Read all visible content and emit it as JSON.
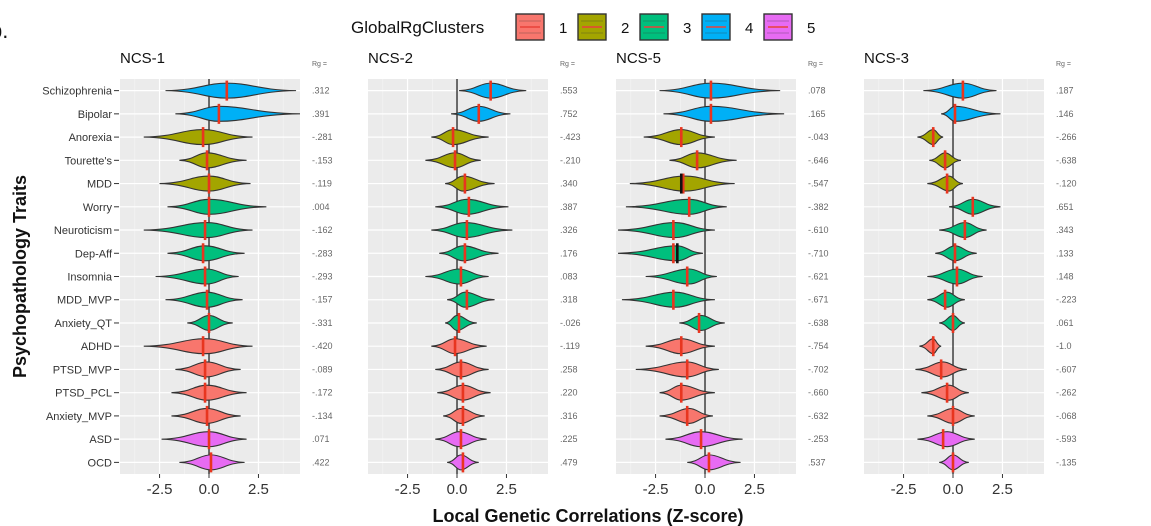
{
  "panel_letter": "b.",
  "legend": {
    "title": "GlobalRgClusters",
    "items": [
      {
        "label": "1",
        "color": "#F8766D"
      },
      {
        "label": "2",
        "color": "#A3A500"
      },
      {
        "label": "3",
        "color": "#00BF7D"
      },
      {
        "label": "4",
        "color": "#00B0F6"
      },
      {
        "label": "5",
        "color": "#E76BF3"
      }
    ]
  },
  "xlabel": "Local Genetic Correlations (Z-score)",
  "ylabel": "Psychopathology Traits",
  "rg_header": "Rg =",
  "chart_data": {
    "type": "violin",
    "traits": [
      "Schizophrenia",
      "Bipolar",
      "Anorexia",
      "Tourette's",
      "MDD",
      "Worry",
      "Neuroticism",
      "Dep-Aff",
      "Insomnia",
      "MDD_MVP",
      "Anxiety_QT",
      "ADHD",
      "PTSD_MVP",
      "PTSD_PCL",
      "Anxiety_MVP",
      "ASD",
      "OCD"
    ],
    "trait_cluster": [
      4,
      4,
      2,
      2,
      2,
      3,
      3,
      3,
      3,
      3,
      3,
      1,
      1,
      1,
      1,
      5,
      5
    ],
    "x_ticks": [
      "-2.5",
      "0.0",
      "2.5"
    ],
    "x_tick_values": [
      -2.5,
      0,
      2.5
    ],
    "xlim": [
      -4.5,
      4.6
    ],
    "panels": [
      {
        "title": "NCS-1",
        "rg": [
          ".312",
          ".391",
          "-.281",
          "-.153",
          "-.119",
          ".004",
          "-.162",
          "-.283",
          "-.293",
          "-.157",
          "-.331",
          "-.420",
          "-.089",
          "-.172",
          "-.134",
          ".071",
          ".422"
        ],
        "center": [
          0.9,
          0.5,
          -0.3,
          -0.1,
          0.0,
          0.0,
          -0.1,
          -0.2,
          -0.1,
          -0.1,
          0.0,
          -0.2,
          -0.1,
          -0.1,
          -0.1,
          0.0,
          0.1
        ],
        "median": [
          0.9,
          0.5,
          -0.3,
          -0.1,
          0.0,
          0.0,
          -0.2,
          -0.3,
          -0.2,
          -0.1,
          0.0,
          -0.3,
          -0.2,
          -0.2,
          -0.1,
          0.0,
          0.1
        ],
        "range": [
          [
            -2.2,
            4.4
          ],
          [
            -1.7,
            4.6
          ],
          [
            -3.3,
            2.2
          ],
          [
            -1.5,
            1.9
          ],
          [
            -2.5,
            2.1
          ],
          [
            -2.1,
            2.9
          ],
          [
            -3.3,
            2.2
          ],
          [
            -2.1,
            1.8
          ],
          [
            -2.7,
            1.5
          ],
          [
            -2.2,
            1.7
          ],
          [
            -1.1,
            1.2
          ],
          [
            -3.3,
            2.2
          ],
          [
            -1.7,
            1.6
          ],
          [
            -1.9,
            1.9
          ],
          [
            -1.9,
            1.6
          ],
          [
            -2.4,
            1.9
          ],
          [
            -1.5,
            1.8
          ]
        ]
      },
      {
        "title": "NCS-2",
        "rg": [
          ".553",
          ".752",
          "-.423",
          "-.210",
          ".340",
          ".387",
          ".326",
          ".176",
          ".083",
          ".318",
          "-.026",
          "-.119",
          ".258",
          ".220",
          ".316",
          ".225",
          ".479"
        ],
        "center": [
          1.7,
          1.1,
          -0.2,
          -0.1,
          0.3,
          0.5,
          0.4,
          0.3,
          0.1,
          0.4,
          0.0,
          -0.1,
          0.2,
          0.3,
          0.2,
          0.1,
          0.2
        ],
        "median": [
          1.7,
          1.1,
          -0.2,
          -0.1,
          0.4,
          0.6,
          0.5,
          0.4,
          0.2,
          0.5,
          0.1,
          -0.1,
          0.2,
          0.3,
          0.3,
          0.2,
          0.3
        ],
        "range": [
          [
            0.1,
            3.5
          ],
          [
            -0.3,
            2.7
          ],
          [
            -1.3,
            1.6
          ],
          [
            -1.6,
            1.2
          ],
          [
            -0.6,
            1.9
          ],
          [
            -1.1,
            2.6
          ],
          [
            -1.3,
            2.8
          ],
          [
            -0.9,
            2.1
          ],
          [
            -1.6,
            1.6
          ],
          [
            -0.5,
            1.9
          ],
          [
            -0.6,
            1.0
          ],
          [
            -1.3,
            1.5
          ],
          [
            -1.1,
            1.6
          ],
          [
            -1.0,
            1.7
          ],
          [
            -0.7,
            1.4
          ],
          [
            -1.1,
            1.5
          ],
          [
            -0.5,
            1.1
          ]
        ]
      },
      {
        "title": "NCS-5",
        "rg": [
          ".078",
          ".165",
          "-.043",
          "-.646",
          "-.547",
          "-.382",
          "-.610",
          "-.710",
          "-.621",
          "-.671",
          "-.638",
          "-.754",
          "-.702",
          "-.660",
          "-.632",
          "-.253",
          ".537"
        ],
        "center": [
          0.3,
          0.3,
          -1.2,
          -0.4,
          -1.0,
          -0.8,
          -1.5,
          -1.4,
          -0.8,
          -1.5,
          -0.2,
          -1.2,
          -0.9,
          -1.2,
          -0.8,
          -0.2,
          0.2
        ],
        "median": [
          0.3,
          0.3,
          -1.2,
          -0.4,
          -1.1,
          -0.8,
          -1.6,
          -1.6,
          -0.9,
          -1.6,
          -0.3,
          -1.2,
          -0.9,
          -1.2,
          -0.9,
          -0.2,
          0.2
        ],
        "median2": [
          null,
          null,
          null,
          null,
          -1.2,
          null,
          null,
          -1.4,
          null,
          null,
          null,
          null,
          null,
          null,
          null,
          null,
          null
        ],
        "range": [
          [
            -2.3,
            3.8
          ],
          [
            -2.1,
            4.0
          ],
          [
            -3.1,
            0.5
          ],
          [
            -1.8,
            1.6
          ],
          [
            -3.8,
            1.5
          ],
          [
            -4.0,
            1.1
          ],
          [
            -4.4,
            0.5
          ],
          [
            -4.4,
            -0.1
          ],
          [
            -3.0,
            0.6
          ],
          [
            -4.2,
            0.5
          ],
          [
            -1.3,
            1.0
          ],
          [
            -3.0,
            0.5
          ],
          [
            -3.5,
            0.7
          ],
          [
            -2.3,
            0.5
          ],
          [
            -2.3,
            0.4
          ],
          [
            -2.0,
            1.9
          ],
          [
            -0.9,
            1.8
          ]
        ]
      },
      {
        "title": "NCS-3",
        "rg": [
          ".187",
          ".146",
          "-.266",
          "-.638",
          "-.120",
          ".651",
          ".343",
          ".133",
          ".148",
          "-.223",
          ".061",
          "-1.0",
          "-.607",
          "-.262",
          "-.068",
          "-.593",
          "-.135"
        ],
        "center": [
          0.5,
          0.1,
          -1.0,
          -0.4,
          -0.2,
          1.0,
          0.6,
          0.1,
          0.2,
          -0.3,
          0.0,
          -1.0,
          -0.5,
          -0.2,
          0.0,
          -0.3,
          0.0
        ],
        "median": [
          0.5,
          0.1,
          -1.0,
          -0.4,
          -0.3,
          1.0,
          0.6,
          0.1,
          0.2,
          -0.4,
          0.0,
          -1.0,
          -0.6,
          -0.3,
          0.0,
          -0.5,
          0.0
        ],
        "range": [
          [
            -1.5,
            2.2
          ],
          [
            -0.6,
            2.4
          ],
          [
            -1.8,
            -0.5
          ],
          [
            -1.2,
            0.4
          ],
          [
            -1.3,
            0.5
          ],
          [
            -0.2,
            2.4
          ],
          [
            -0.7,
            1.7
          ],
          [
            -0.9,
            1.2
          ],
          [
            -1.3,
            1.5
          ],
          [
            -1.3,
            0.6
          ],
          [
            -0.7,
            0.6
          ],
          [
            -1.7,
            -0.6
          ],
          [
            -1.9,
            0.7
          ],
          [
            -1.6,
            0.8
          ],
          [
            -1.3,
            1.1
          ],
          [
            -1.8,
            1.1
          ],
          [
            -0.7,
            0.8
          ]
        ]
      }
    ]
  }
}
